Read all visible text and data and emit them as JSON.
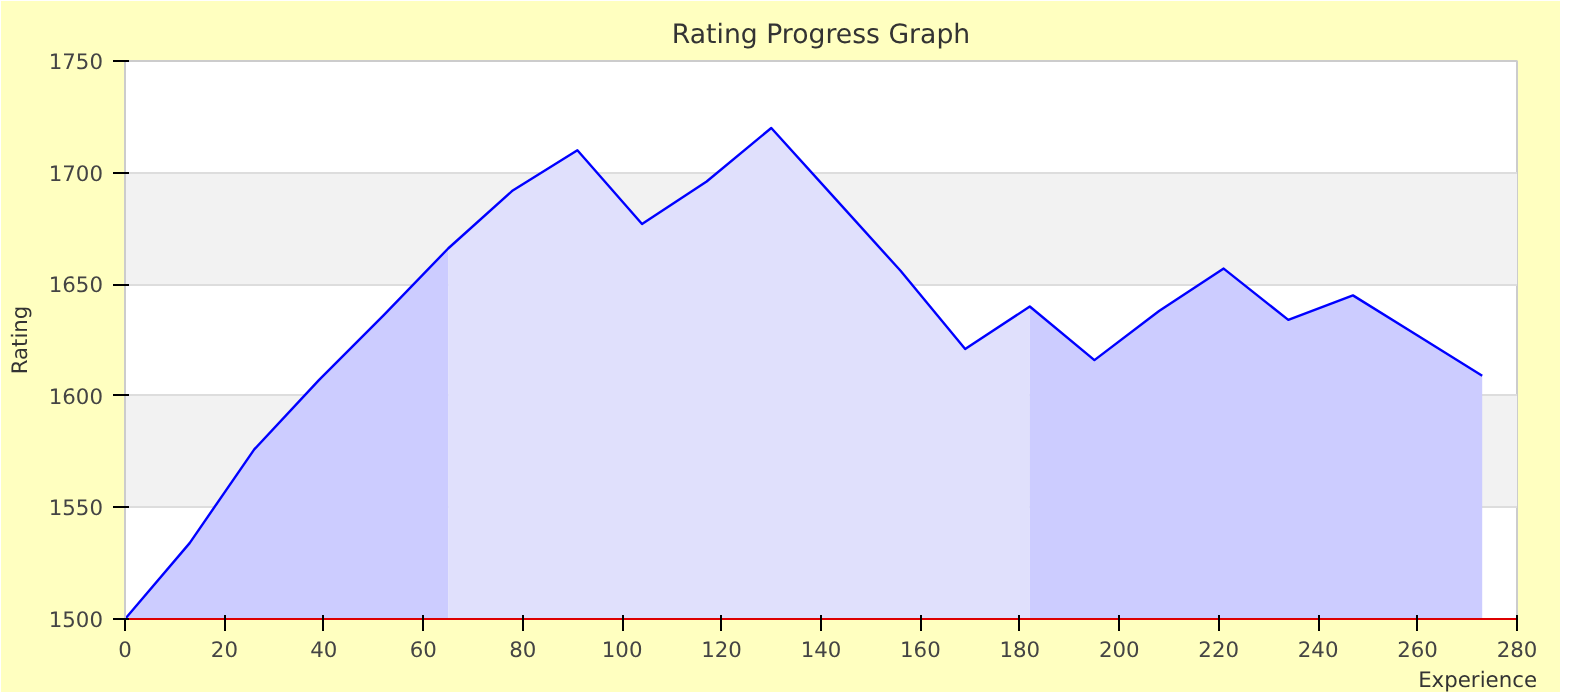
{
  "chart_data": {
    "type": "area",
    "title": "Rating Progress Graph",
    "xlabel": "Experience",
    "ylabel": "Rating",
    "xlim": [
      0,
      280
    ],
    "xticks": [
      0,
      20,
      40,
      60,
      80,
      100,
      120,
      140,
      160,
      180,
      200,
      220,
      240,
      260,
      280
    ],
    "ylim": [
      1500,
      1750
    ],
    "yticks": [
      1500,
      1550,
      1600,
      1650,
      1700,
      1750
    ],
    "grid": "y",
    "series": [
      {
        "color": "#ccccff",
        "x": [
          0,
          13,
          26,
          39,
          52,
          65
        ],
        "values": [
          1500,
          1534,
          1576,
          1607,
          1636,
          1666
        ]
      },
      {
        "color": "#e0e0fc",
        "x": [
          65,
          78,
          91,
          104,
          117,
          130,
          143,
          156,
          169,
          182
        ],
        "values": [
          1666,
          1692,
          1710,
          1677,
          1696,
          1720,
          1688,
          1656,
          1621,
          1640
        ]
      },
      {
        "color": "#ccccff",
        "x": [
          182,
          195,
          208,
          221,
          234,
          247,
          260,
          273
        ],
        "values": [
          1640,
          1616,
          1638,
          1657,
          1634,
          1645,
          1627,
          1609
        ]
      },
      {
        "type": "line",
        "color": "#0000ff",
        "x": [
          0,
          13,
          26,
          39,
          52,
          65,
          78,
          91,
          104,
          117,
          130,
          143,
          156,
          169,
          182,
          195,
          208,
          221,
          234,
          247,
          260,
          273
        ],
        "values": [
          1500,
          1534,
          1576,
          1607,
          1636,
          1666,
          1692,
          1710,
          1677,
          1696,
          1720,
          1688,
          1656,
          1621,
          1640,
          1616,
          1638,
          1657,
          1634,
          1645,
          1627,
          1609
        ]
      }
    ]
  }
}
